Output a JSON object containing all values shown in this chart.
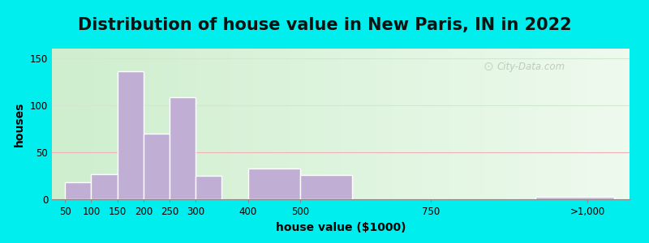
{
  "title": "Distribution of house value in New Paris, IN in 2022",
  "xlabel": "house value ($1000)",
  "ylabel": "houses",
  "bar_values": [
    18,
    27,
    136,
    70,
    108,
    25,
    33,
    26,
    3
  ],
  "bar_positions": [
    50,
    100,
    150,
    200,
    250,
    300,
    400,
    500,
    950
  ],
  "bar_widths": [
    50,
    50,
    50,
    50,
    50,
    50,
    100,
    100,
    150
  ],
  "bar_color": "#c0aed4",
  "bar_edgecolor": "#ffffff",
  "xtick_labels": [
    "50",
    "100",
    "150",
    "200",
    "250",
    "300",
    "400",
    "500",
    "750",
    ">1,000"
  ],
  "xtick_positions": [
    50,
    100,
    150,
    200,
    250,
    300,
    400,
    500,
    750,
    1050
  ],
  "ytick_labels": [
    "0",
    "50",
    "100",
    "150"
  ],
  "ytick_values": [
    0,
    50,
    100,
    150
  ],
  "ylim": [
    0,
    160
  ],
  "xlim_left": 25,
  "xlim_right": 1130,
  "outer_bg": "#00EEEE",
  "inner_bg": "#e8f5e2",
  "watermark_text": "City-Data.com",
  "title_fontsize": 15,
  "axis_label_fontsize": 10,
  "tick_fontsize": 8.5,
  "grid_color_50": "#f0c0c8",
  "grid_color_100": "#e8eee8",
  "grid_color_150": "#e8eee8"
}
